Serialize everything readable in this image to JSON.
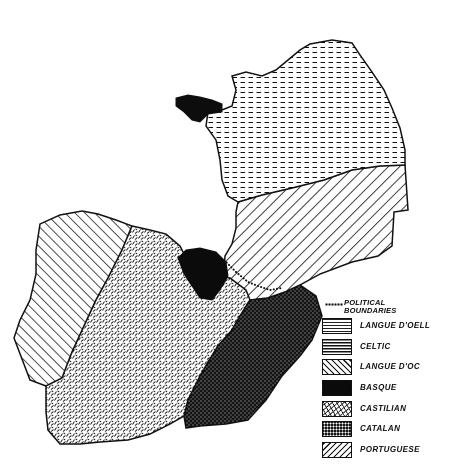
{
  "map": {
    "regions": [
      {
        "id": "langue-doeil",
        "icon": "horizontal-dash-hatch"
      },
      {
        "id": "celtic",
        "icon": "dense-horizontal-hatch"
      },
      {
        "id": "langue-doc",
        "icon": "diagonal-hatch"
      },
      {
        "id": "basque",
        "icon": "solid-black"
      },
      {
        "id": "castilian",
        "icon": "crosshatch-scribble"
      },
      {
        "id": "catalan",
        "icon": "dark-stipple"
      },
      {
        "id": "portuguese",
        "icon": "reverse-diagonal-hatch"
      }
    ]
  },
  "legend": {
    "boundaries_line1": "POLITICAL",
    "boundaries_line2": "BOUNDARIES",
    "items": [
      {
        "label": "LANGUE D'OELL"
      },
      {
        "label": "CELTIC"
      },
      {
        "label": "LANGUE D'OC"
      },
      {
        "label": "BASQUE"
      },
      {
        "label": "CASTILIAN"
      },
      {
        "label": "CATALAN"
      },
      {
        "label": "PORTUGUESE"
      }
    ]
  }
}
